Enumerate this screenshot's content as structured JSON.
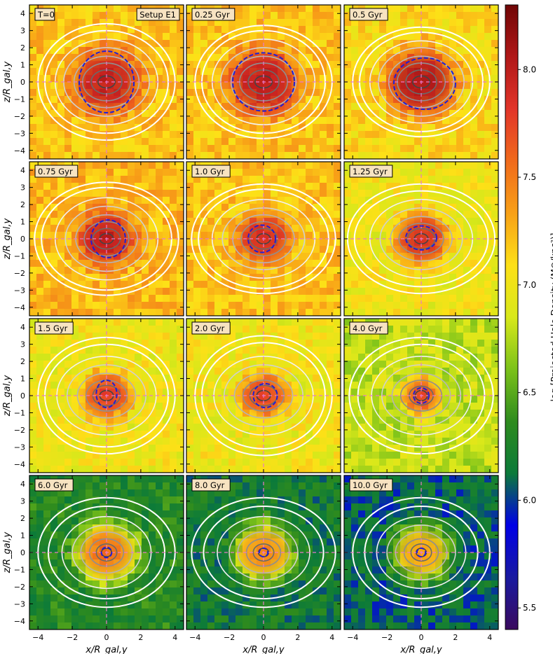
{
  "figure": {
    "setup_label": "Setup E1",
    "xlabel": "x/R_gal,y",
    "ylabel": "z/R_gal,y",
    "x_ticks": [
      -4,
      -2,
      0,
      2,
      4
    ],
    "y_ticks": [
      -4,
      -3,
      -2,
      -1,
      0,
      1,
      2,
      3,
      4
    ],
    "xlim": [
      -4.5,
      4.5
    ],
    "ylim": [
      -4.5,
      4.5
    ]
  },
  "colorbar": {
    "label": "log [Projected Halo Density (M⊙/kpc²)]",
    "range": [
      5.4,
      8.3
    ],
    "ticks": [
      5.5,
      6.0,
      6.5,
      7.0,
      7.5,
      8.0
    ],
    "colormap": [
      "#3a0a5e",
      "#1a1aa0",
      "#0000e6",
      "#0b7a3a",
      "#2e8b1e",
      "#7cc21a",
      "#d8e81a",
      "#fde017",
      "#f8a017",
      "#f06a1c",
      "#e2352a",
      "#b01818",
      "#700606"
    ]
  },
  "chart_data": {
    "type": "heatmap",
    "panels": [
      {
        "time": "T=0",
        "bg_level": 7.2,
        "core_level": 8.0,
        "core_radius": 2.9,
        "dash_rx": 1.6,
        "dash_ry": 1.8,
        "dash_dx": 0.0,
        "dash_dy": 0.0,
        "halo_rx": [
          4.0,
          3.6,
          3.0,
          2.5,
          1.9,
          1.4,
          0.9,
          0.5
        ],
        "halo_ry": [
          3.4,
          3.0,
          2.5,
          2.0,
          1.5,
          1.1,
          0.7,
          0.35
        ]
      },
      {
        "time": "0.25 Gyr",
        "bg_level": 7.2,
        "core_level": 8.0,
        "core_radius": 3.0,
        "dash_rx": 1.8,
        "dash_ry": 1.7,
        "dash_dx": 0.0,
        "dash_dy": 0.0,
        "halo_rx": [
          4.0,
          3.6,
          3.0,
          2.5,
          1.9,
          1.4,
          0.9,
          0.5
        ],
        "halo_ry": [
          3.3,
          3.0,
          2.5,
          2.0,
          1.5,
          1.1,
          0.7,
          0.35
        ]
      },
      {
        "time": "0.5 Gyr",
        "bg_level": 7.1,
        "core_level": 8.1,
        "core_radius": 2.9,
        "dash_rx": 1.8,
        "dash_ry": 1.5,
        "dash_dx": 0.2,
        "dash_dy": -0.1,
        "halo_rx": [
          4.0,
          3.6,
          3.0,
          2.5,
          1.9,
          1.4,
          0.9,
          0.5
        ],
        "halo_ry": [
          3.2,
          2.9,
          2.4,
          2.0,
          1.5,
          1.1,
          0.7,
          0.35
        ]
      },
      {
        "time": "0.75 Gyr",
        "bg_level": 7.25,
        "core_level": 8.0,
        "core_radius": 2.4,
        "dash_rx": 1.0,
        "dash_ry": 1.1,
        "dash_dx": 0.1,
        "dash_dy": 0.0,
        "halo_rx": [
          4.2,
          3.8,
          3.0,
          2.4,
          1.8,
          1.3,
          0.8,
          0.4
        ],
        "halo_ry": [
          3.3,
          3.0,
          2.4,
          1.9,
          1.4,
          1.0,
          0.6,
          0.3
        ]
      },
      {
        "time": "1.0 Gyr",
        "bg_level": 7.2,
        "core_level": 7.9,
        "core_radius": 2.2,
        "dash_rx": 0.8,
        "dash_ry": 0.8,
        "dash_dx": -0.1,
        "dash_dy": 0.0,
        "halo_rx": [
          4.2,
          3.8,
          3.0,
          2.4,
          1.8,
          1.3,
          0.8,
          0.4
        ],
        "halo_ry": [
          3.2,
          2.9,
          2.3,
          1.8,
          1.4,
          1.0,
          0.6,
          0.3
        ]
      },
      {
        "time": "1.25 Gyr",
        "bg_level": 7.0,
        "core_level": 7.9,
        "core_radius": 2.2,
        "dash_rx": 0.9,
        "dash_ry": 0.7,
        "dash_dx": 0.0,
        "dash_dy": 0.05,
        "halo_rx": [
          4.3,
          3.9,
          3.0,
          2.4,
          1.8,
          1.3,
          0.8,
          0.4
        ],
        "halo_ry": [
          3.2,
          2.8,
          2.3,
          1.8,
          1.3,
          0.9,
          0.6,
          0.3
        ]
      },
      {
        "time": "1.5 Gyr",
        "bg_level": 7.0,
        "core_level": 7.8,
        "core_radius": 2.0,
        "dash_rx": 0.6,
        "dash_ry": 0.8,
        "dash_dx": 0.0,
        "dash_dy": 0.1,
        "halo_rx": [
          4.0,
          3.6,
          2.9,
          2.3,
          1.7,
          1.2,
          0.8,
          0.4
        ],
        "halo_ry": [
          3.4,
          3.0,
          2.3,
          1.8,
          1.3,
          0.9,
          0.6,
          0.3
        ]
      },
      {
        "time": "2.0 Gyr",
        "bg_level": 7.0,
        "core_level": 7.8,
        "core_radius": 1.9,
        "dash_rx": 0.7,
        "dash_ry": 0.7,
        "dash_dx": 0.1,
        "dash_dy": 0.0,
        "halo_rx": [
          4.0,
          3.6,
          2.9,
          2.3,
          1.7,
          1.2,
          0.8,
          0.4
        ],
        "halo_ry": [
          3.5,
          3.1,
          2.3,
          1.8,
          1.3,
          0.9,
          0.6,
          0.3
        ]
      },
      {
        "time": "4.0 Gyr",
        "bg_level": 6.8,
        "core_level": 7.8,
        "core_radius": 1.6,
        "dash_rx": 0.45,
        "dash_ry": 0.45,
        "dash_dx": 0.0,
        "dash_dy": 0.0,
        "halo_rx": [
          4.2,
          3.7,
          2.9,
          2.3,
          1.7,
          1.2,
          0.7,
          0.35
        ],
        "halo_ry": [
          3.4,
          3.0,
          2.3,
          1.8,
          1.3,
          0.9,
          0.55,
          0.3
        ]
      },
      {
        "time": "6.0 Gyr",
        "bg_level": 6.3,
        "core_level": 7.6,
        "core_radius": 2.6,
        "dash_rx": 0.3,
        "dash_ry": 0.3,
        "dash_dx": 0.0,
        "dash_dy": 0.0,
        "halo_rx": [
          4.0,
          3.4,
          2.6,
          2.0,
          1.5,
          1.0,
          0.6,
          0.3
        ],
        "halo_ry": [
          3.2,
          2.7,
          2.1,
          1.6,
          1.2,
          0.8,
          0.5,
          0.25
        ]
      },
      {
        "time": "8.0 Gyr",
        "bg_level": 6.2,
        "core_level": 7.5,
        "core_radius": 2.5,
        "dash_rx": 0.25,
        "dash_ry": 0.25,
        "dash_dx": 0.0,
        "dash_dy": 0.0,
        "halo_rx": [
          4.2,
          3.5,
          2.7,
          2.0,
          1.5,
          1.0,
          0.6,
          0.3
        ],
        "halo_ry": [
          3.2,
          2.7,
          2.1,
          1.6,
          1.2,
          0.8,
          0.5,
          0.25
        ]
      },
      {
        "time": "10.0 Gyr",
        "bg_level": 6.1,
        "core_level": 7.4,
        "core_radius": 2.4,
        "dash_rx": 0.25,
        "dash_ry": 0.25,
        "dash_dx": 0.0,
        "dash_dy": 0.0,
        "halo_rx": [
          4.0,
          3.3,
          2.6,
          2.0,
          1.5,
          1.0,
          0.6,
          0.3
        ],
        "halo_ry": [
          3.2,
          2.7,
          2.1,
          1.6,
          1.2,
          0.8,
          0.5,
          0.25
        ]
      }
    ]
  }
}
